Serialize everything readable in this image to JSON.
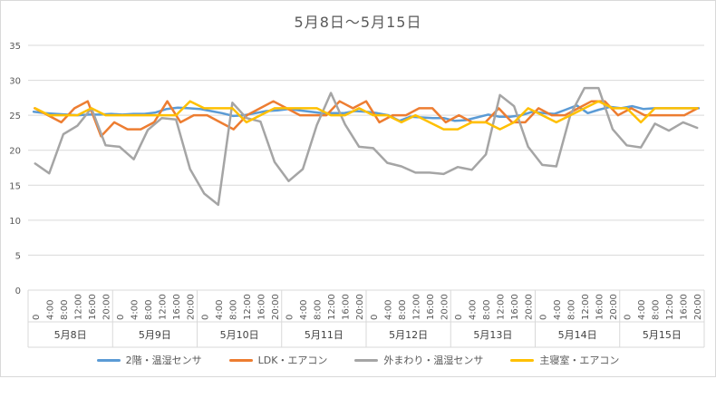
{
  "chart_data": {
    "type": "line",
    "title": "5月8日～5月15日",
    "ylim": [
      0,
      35
    ],
    "yticks": [
      0,
      5,
      10,
      15,
      20,
      25,
      30,
      35
    ],
    "grid": true,
    "legend_position": "bottom",
    "hour_labels": [
      "0:00",
      "4:00",
      "8:00",
      "12:00",
      "16:00",
      "20:00"
    ],
    "first_hour_label": "0",
    "days": [
      "5月8日",
      "5月9日",
      "5月10日",
      "5月11日",
      "5月12日",
      "5月13日",
      "5月14日",
      "5月15日"
    ],
    "series": [
      {
        "name": "2階・温湿センサ",
        "color": "#5b9bd5",
        "values": [
          25.5,
          25.3,
          25.2,
          25.1,
          25.0,
          25.1,
          25.1,
          25.2,
          25.1,
          25.2,
          25.2,
          25.4,
          25.9,
          26.1,
          26.0,
          25.9,
          25.6,
          25.3,
          24.9,
          25.0,
          25.3,
          25.6,
          25.7,
          25.9,
          25.7,
          25.5,
          25.3,
          25.3,
          25.3,
          25.6,
          25.5,
          25.3,
          25.0,
          24.2,
          24.8,
          24.7,
          24.6,
          24.6,
          24.2,
          24.3,
          24.7,
          25.1,
          24.8,
          24.8,
          25.0,
          25.5,
          25.3,
          25.2,
          25.8,
          26.4,
          25.3,
          25.8,
          26.2,
          26.0,
          26.3,
          25.9,
          26.0,
          26.0,
          26.0,
          26.0,
          26.0
        ]
      },
      {
        "name": "LDK・エアコン",
        "color": "#ed7d31",
        "values": [
          26.0,
          25.0,
          24.0,
          26.0,
          27.0,
          22.0,
          24.0,
          23.0,
          23.0,
          24.0,
          27.0,
          24.0,
          25.0,
          25.0,
          24.0,
          23.0,
          25.0,
          26.0,
          27.0,
          26.0,
          25.0,
          25.0,
          25.0,
          27.0,
          26.0,
          27.0,
          24.0,
          25.0,
          25.0,
          26.0,
          26.0,
          24.0,
          25.0,
          24.0,
          24.0,
          26.0,
          24.0,
          24.0,
          26.0,
          25.0,
          25.0,
          26.0,
          27.0,
          27.0,
          25.0,
          26.0,
          25.0,
          25.0,
          25.0,
          25.0,
          26.0
        ]
      },
      {
        "name": "外まわり・温湿センサ",
        "color": "#a5a5a5",
        "values": [
          18.1,
          16.7,
          22.3,
          23.5,
          26.0,
          20.7,
          20.5,
          18.7,
          22.9,
          24.6,
          24.4,
          17.3,
          13.8,
          12.2,
          26.8,
          24.6,
          24.1,
          18.3,
          15.6,
          17.3,
          23.6,
          28.2,
          23.7,
          20.5,
          20.3,
          18.2,
          17.7,
          16.8,
          16.8,
          16.6,
          17.6,
          17.2,
          19.4,
          27.9,
          26.3,
          20.5,
          17.9,
          17.7,
          25.1,
          28.9,
          28.9,
          23.0,
          20.7,
          20.4,
          23.8,
          22.8,
          24.0,
          23.2
        ]
      },
      {
        "name": "主寝室・エアコン",
        "color": "#ffc000",
        "values": [
          26.0,
          25.0,
          25.0,
          25.0,
          26.0,
          25.0,
          25.0,
          25.0,
          25.0,
          25.0,
          25.0,
          27.0,
          26.0,
          26.0,
          26.0,
          24.0,
          25.0,
          26.0,
          26.0,
          26.0,
          26.0,
          25.0,
          25.0,
          26.0,
          25.0,
          25.0,
          24.0,
          25.0,
          24.0,
          23.0,
          23.0,
          24.0,
          24.0,
          23.0,
          24.0,
          26.0,
          25.0,
          24.0,
          25.0,
          26.0,
          27.0,
          26.0,
          26.0,
          24.0,
          26.0,
          26.0,
          26.0,
          26.0
        ]
      }
    ]
  }
}
